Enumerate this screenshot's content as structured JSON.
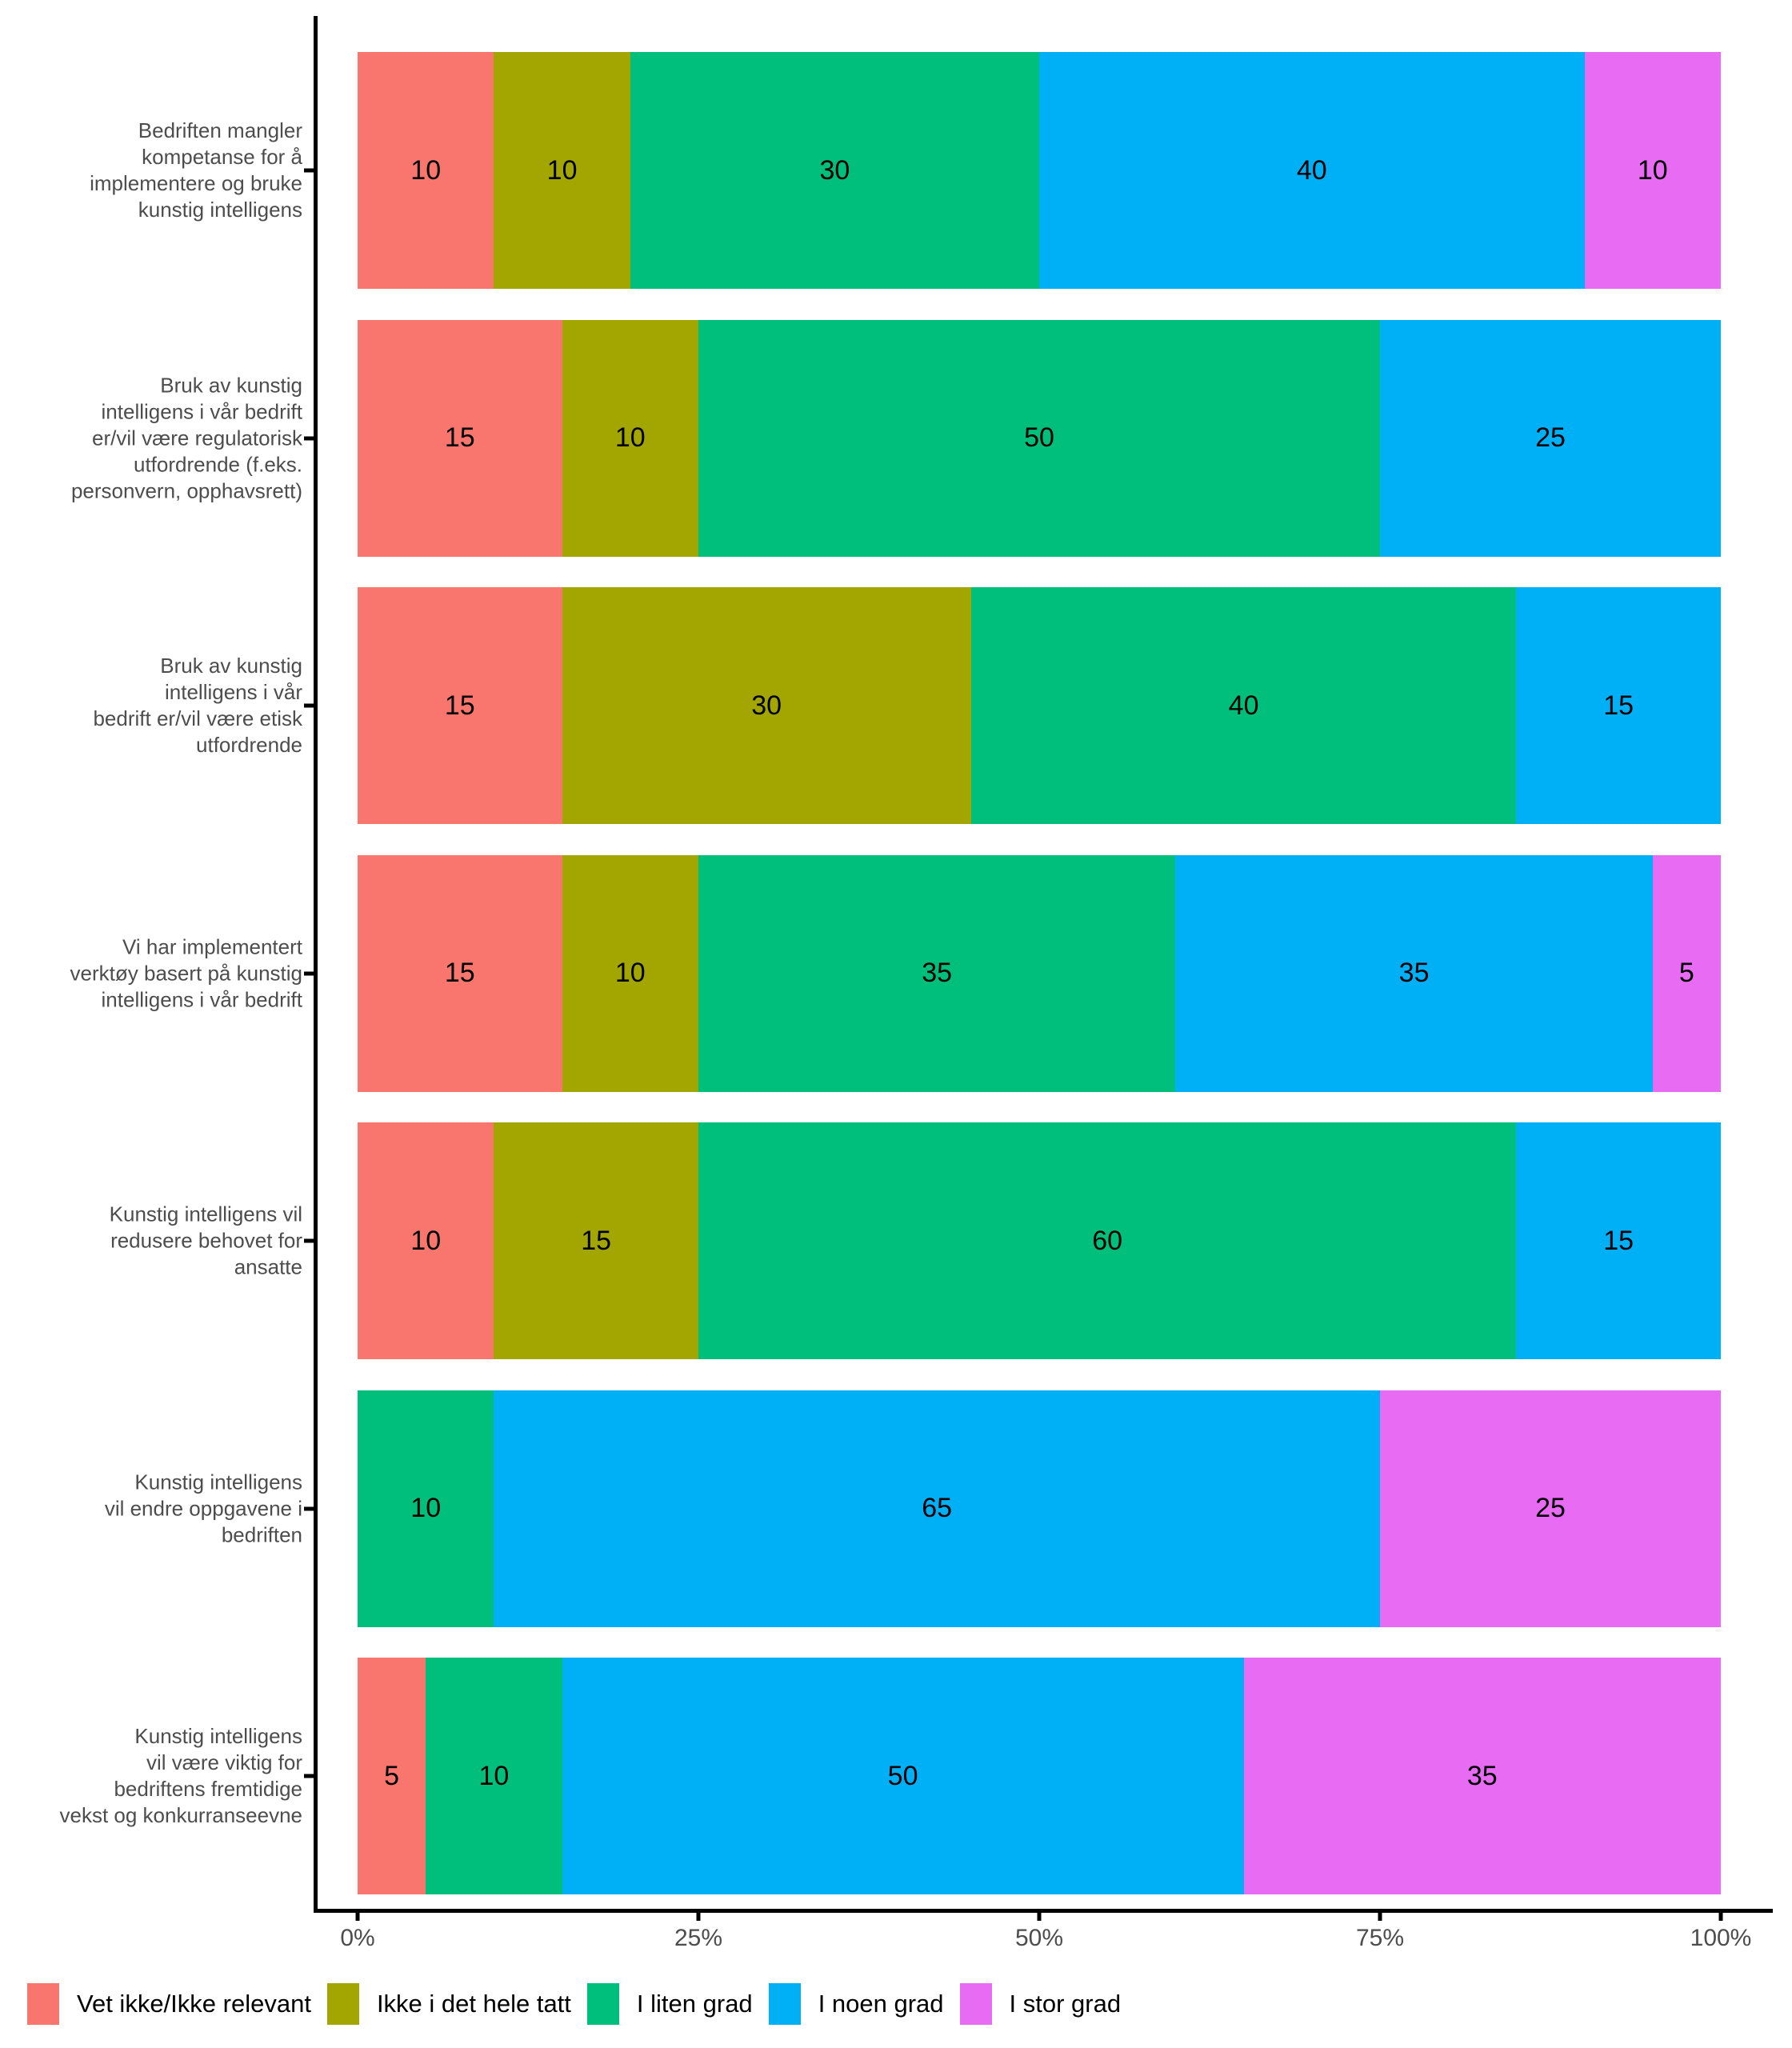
{
  "figure": {
    "kind": "horizontal-stacked-bar-chart",
    "background": "#ffffff"
  },
  "chart_data": {
    "type": "bar",
    "orientation": "horizontal",
    "stacked": true,
    "unit": "percent",
    "title": "",
    "xlabel": "",
    "ylabel": "",
    "xlim": [
      0,
      100
    ],
    "grid": false,
    "legend_position": "bottom-left",
    "axis_color": "#000000",
    "axis_text_color": "#4d4d4d",
    "value_label_color": "#000000",
    "x_ticks": [
      {
        "value": 0,
        "label": "0%"
      },
      {
        "value": 25,
        "label": "25%"
      },
      {
        "value": 50,
        "label": "50%"
      },
      {
        "value": 75,
        "label": "75%"
      },
      {
        "value": 100,
        "label": "100%"
      }
    ],
    "categories": [
      "Bedriften mangler\nkompetanse for å\nimplementere og bruke\nkunstig intelligens",
      "Bruk av kunstig\nintelligens i vår bedrift\ner/vil være regulatorisk\nutfordrende (f.eks.\npersonvern, opphavsrett)",
      "Bruk av kunstig\nintelligens i vår\nbedrift er/vil være etisk\nutfordrende",
      "Vi har implementert\nverktøy basert på kunstig\nintelligens i vår bedrift",
      "Kunstig intelligens vil\nredusere behovet for\nansatte",
      "Kunstig intelligens\nvil endre oppgavene i\nbedriften",
      "Kunstig intelligens\nvil være viktig for\nbedriftens fremtidige\nvekst og konkurranseevne"
    ],
    "series": [
      {
        "name": "Vet ikke/Ikke relevant",
        "color": "#F8766D",
        "values": [
          10,
          15,
          15,
          15,
          10,
          0,
          5
        ]
      },
      {
        "name": "Ikke i det hele tatt",
        "color": "#A3A500",
        "values": [
          10,
          10,
          30,
          10,
          15,
          0,
          0
        ]
      },
      {
        "name": "I liten grad",
        "color": "#00BF7D",
        "values": [
          30,
          50,
          40,
          35,
          60,
          10,
          10
        ]
      },
      {
        "name": "I noen grad",
        "color": "#00B0F6",
        "values": [
          40,
          25,
          15,
          35,
          15,
          65,
          50
        ]
      },
      {
        "name": "I stor grad",
        "color": "#E76BF3",
        "values": [
          10,
          0,
          0,
          5,
          0,
          25,
          35
        ]
      }
    ]
  }
}
